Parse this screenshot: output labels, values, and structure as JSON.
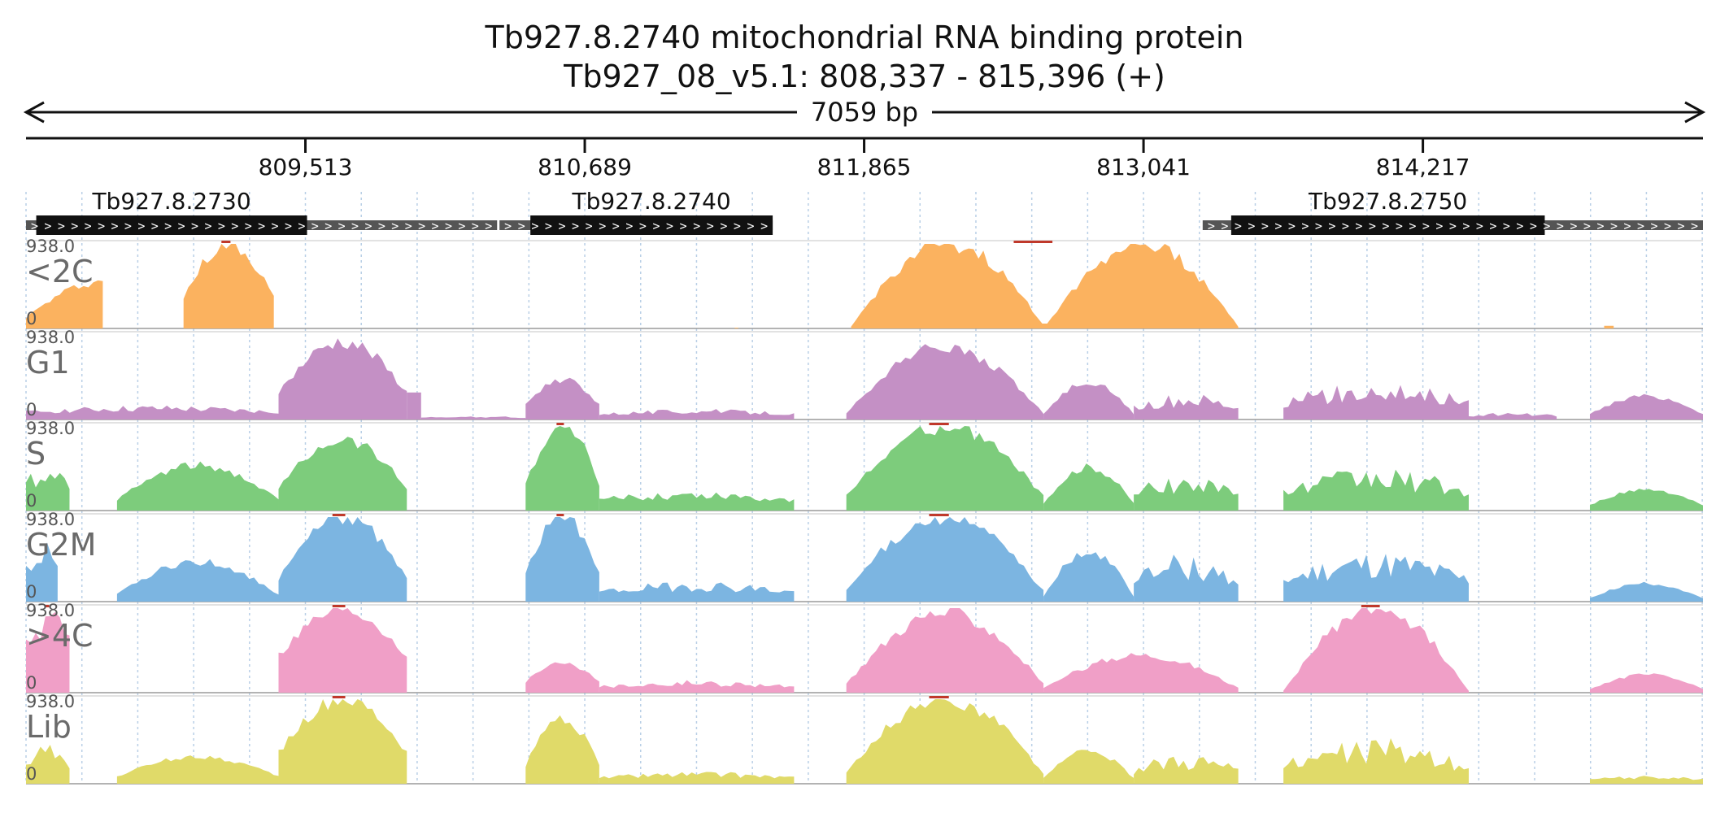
{
  "chart_data": {
    "type": "area",
    "title": "Tb927.8.2740  mitochondrial RNA binding protein",
    "subtitle": "Tb927_08_v5.1: 808,337 - 815,396 (+)",
    "span_label": "7059 bp",
    "xlim": [
      808337,
      815396
    ],
    "ticks": [
      {
        "value": 809513,
        "label": "809,513"
      },
      {
        "value": 810689,
        "label": "810,689"
      },
      {
        "value": 811865,
        "label": "811,865"
      },
      {
        "value": 813041,
        "label": "813,041"
      },
      {
        "value": 814217,
        "label": "814,217"
      }
    ],
    "genes": [
      {
        "name": "Tb927.8.2730",
        "start": 808380,
        "end": 809520,
        "utr_start": 808337,
        "utr_end": 810320
      },
      {
        "name": "Tb927.8.2740",
        "start": 810460,
        "end": 811480,
        "utr_start": 810330,
        "utr_end": 811480
      },
      {
        "name": "Tb927.8.2750",
        "start": 813410,
        "end": 814730,
        "utr_start": 813290,
        "utr_end": 815396
      }
    ],
    "ylim": [
      0,
      938.0
    ],
    "ymax_label": "938.0",
    "ymin_label": "0",
    "tracks": [
      {
        "name": "<2C",
        "color": "#fbb25f",
        "segments": [
          {
            "start": 808337,
            "end": 808660,
            "shape": "rise",
            "peak": 520,
            "base": 120
          },
          {
            "start": 809000,
            "end": 809380,
            "shape": "dome",
            "peak": 938,
            "base": 340
          },
          {
            "start": 811320,
            "end": 811335,
            "shape": "flat",
            "peak": 8,
            "base": 0
          },
          {
            "start": 811810,
            "end": 813440,
            "shape": "multi",
            "peak": 938,
            "base": 20
          },
          {
            "start": 814980,
            "end": 815020,
            "shape": "flat",
            "peak": 30,
            "base": 0
          }
        ]
      },
      {
        "name": "G1",
        "color": "#c490c5",
        "segments": [
          {
            "start": 808337,
            "end": 809400,
            "shape": "low",
            "peak": 160,
            "base": 40
          },
          {
            "start": 809400,
            "end": 809940,
            "shape": "dome",
            "peak": 860,
            "base": 300
          },
          {
            "start": 809940,
            "end": 810000,
            "shape": "flat",
            "peak": 300,
            "base": 300
          },
          {
            "start": 810000,
            "end": 810440,
            "shape": "low",
            "peak": 40,
            "base": 10
          },
          {
            "start": 810440,
            "end": 810750,
            "shape": "dome",
            "peak": 450,
            "base": 160
          },
          {
            "start": 810750,
            "end": 811570,
            "shape": "low",
            "peak": 120,
            "base": 30
          },
          {
            "start": 811790,
            "end": 812620,
            "shape": "dome",
            "peak": 800,
            "base": 70
          },
          {
            "start": 812620,
            "end": 813000,
            "shape": "dome",
            "peak": 420,
            "base": 60
          },
          {
            "start": 813000,
            "end": 813440,
            "shape": "low",
            "peak": 300,
            "base": 40
          },
          {
            "start": 813630,
            "end": 814410,
            "shape": "low",
            "peak": 420,
            "base": 60
          },
          {
            "start": 814410,
            "end": 814780,
            "shape": "low",
            "peak": 80,
            "base": 20
          },
          {
            "start": 814920,
            "end": 815396,
            "shape": "dome",
            "peak": 260,
            "base": 60
          }
        ]
      },
      {
        "name": "S",
        "color": "#7dcc7c",
        "segments": [
          {
            "start": 808337,
            "end": 808520,
            "shape": "low",
            "peak": 560,
            "base": 120
          },
          {
            "start": 808720,
            "end": 809400,
            "shape": "dome",
            "peak": 500,
            "base": 120
          },
          {
            "start": 809400,
            "end": 809940,
            "shape": "dome",
            "peak": 800,
            "base": 250
          },
          {
            "start": 810440,
            "end": 810750,
            "shape": "dome",
            "peak": 938,
            "base": 300
          },
          {
            "start": 810750,
            "end": 811570,
            "shape": "low",
            "peak": 230,
            "base": 60
          },
          {
            "start": 811790,
            "end": 812620,
            "shape": "dome",
            "peak": 938,
            "base": 160
          },
          {
            "start": 812620,
            "end": 813000,
            "shape": "dome",
            "peak": 480,
            "base": 80
          },
          {
            "start": 813000,
            "end": 813440,
            "shape": "low",
            "peak": 420,
            "base": 60
          },
          {
            "start": 813630,
            "end": 814410,
            "shape": "low",
            "peak": 480,
            "base": 60
          },
          {
            "start": 814920,
            "end": 815396,
            "shape": "dome",
            "peak": 230,
            "base": 60
          }
        ]
      },
      {
        "name": "G2M",
        "color": "#7cb5e1",
        "segments": [
          {
            "start": 808337,
            "end": 808470,
            "shape": "low",
            "peak": 700,
            "base": 200
          },
          {
            "start": 808720,
            "end": 809400,
            "shape": "dome",
            "peak": 440,
            "base": 80
          },
          {
            "start": 809400,
            "end": 809940,
            "shape": "dome",
            "peak": 938,
            "base": 250
          },
          {
            "start": 810440,
            "end": 810750,
            "shape": "dome",
            "peak": 938,
            "base": 320
          },
          {
            "start": 810750,
            "end": 811570,
            "shape": "low",
            "peak": 230,
            "base": 40
          },
          {
            "start": 811790,
            "end": 812620,
            "shape": "dome",
            "peak": 938,
            "base": 120
          },
          {
            "start": 812620,
            "end": 813000,
            "shape": "dome",
            "peak": 560,
            "base": 60
          },
          {
            "start": 813000,
            "end": 813440,
            "shape": "low",
            "peak": 560,
            "base": 60
          },
          {
            "start": 813630,
            "end": 814410,
            "shape": "low",
            "peak": 560,
            "base": 60
          },
          {
            "start": 814920,
            "end": 815396,
            "shape": "dome",
            "peak": 200,
            "base": 40
          }
        ]
      },
      {
        "name": ">4C",
        "color": "#f09fc7",
        "segments": [
          {
            "start": 808337,
            "end": 808520,
            "shape": "low",
            "peak": 938,
            "base": 400
          },
          {
            "start": 809400,
            "end": 809940,
            "shape": "dome",
            "peak": 938,
            "base": 420
          },
          {
            "start": 810440,
            "end": 810750,
            "shape": "dome",
            "peak": 330,
            "base": 120
          },
          {
            "start": 810750,
            "end": 811570,
            "shape": "low",
            "peak": 140,
            "base": 30
          },
          {
            "start": 811790,
            "end": 812620,
            "shape": "dome",
            "peak": 880,
            "base": 100
          },
          {
            "start": 812620,
            "end": 813440,
            "shape": "dome",
            "peak": 420,
            "base": 50
          },
          {
            "start": 813630,
            "end": 814410,
            "shape": "dome",
            "peak": 938,
            "base": 20
          },
          {
            "start": 814920,
            "end": 815396,
            "shape": "dome",
            "peak": 200,
            "base": 40
          }
        ]
      },
      {
        "name": "Lib",
        "color": "#e0da69",
        "segments": [
          {
            "start": 808337,
            "end": 808520,
            "shape": "low",
            "peak": 460,
            "base": 100
          },
          {
            "start": 808720,
            "end": 809400,
            "shape": "dome",
            "peak": 300,
            "base": 80
          },
          {
            "start": 809400,
            "end": 809940,
            "shape": "dome",
            "peak": 938,
            "base": 350
          },
          {
            "start": 810440,
            "end": 810750,
            "shape": "dome",
            "peak": 720,
            "base": 200
          },
          {
            "start": 810750,
            "end": 811570,
            "shape": "low",
            "peak": 140,
            "base": 30
          },
          {
            "start": 811790,
            "end": 812620,
            "shape": "dome",
            "peak": 938,
            "base": 120
          },
          {
            "start": 812620,
            "end": 813000,
            "shape": "dome",
            "peak": 360,
            "base": 60
          },
          {
            "start": 813000,
            "end": 813440,
            "shape": "low",
            "peak": 360,
            "base": 40
          },
          {
            "start": 813630,
            "end": 814410,
            "shape": "low",
            "peak": 520,
            "base": 40
          },
          {
            "start": 814920,
            "end": 815396,
            "shape": "low",
            "peak": 90,
            "base": 30
          }
        ]
      }
    ]
  }
}
